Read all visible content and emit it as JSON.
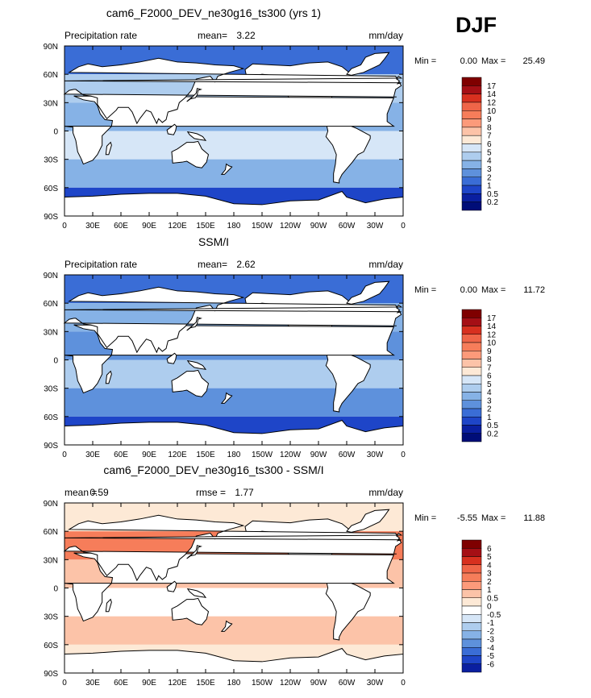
{
  "figure": {
    "season": "DJF"
  },
  "chart_data": [
    {
      "type": "heatmap",
      "title": "cam6_F2000_DEV_ne30g16_ts300 (yrs 1)",
      "left_label": "Precipitation rate",
      "stat1_label": "mean=",
      "stat1_value": "3.22",
      "stat2_label": "",
      "stat2_value": "",
      "units": "mm/day",
      "min_label": "Min =",
      "min_value": "0.00",
      "max_label": "Max =",
      "max_value": "25.49",
      "xlim": [
        0,
        360
      ],
      "ylim": [
        -90,
        90
      ],
      "x_ticks": [
        "0",
        "30E",
        "60E",
        "90E",
        "120E",
        "150E",
        "180",
        "150W",
        "120W",
        "90W",
        "60W",
        "30W",
        "0"
      ],
      "y_ticks": [
        "90S",
        "60S",
        "30S",
        "0",
        "30N",
        "60N",
        "90N"
      ],
      "colorbar_levels": [
        "17",
        "14",
        "12",
        "10",
        "9",
        "8",
        "7",
        "6",
        "5",
        "4",
        "3",
        "2",
        "1",
        "0.5",
        "0.2"
      ],
      "colorbar_colors": [
        "#7f0000",
        "#a50f15",
        "#d7301f",
        "#ef6548",
        "#f67d5a",
        "#fc9a7a",
        "#fcc3a8",
        "#fde9d6",
        "#d6e6f7",
        "#aecdee",
        "#86b2e6",
        "#5e91dc",
        "#3a6dd6",
        "#1e45c8",
        "#0a1fa0",
        "#000d78"
      ],
      "field_bins": [
        {
          "lat_range": [
            60,
            90
          ],
          "value": 1.0
        },
        {
          "lat_range": [
            30,
            60
          ],
          "value": 4.0
        },
        {
          "lat_range": [
            0,
            30
          ],
          "value": 3.0
        },
        {
          "lat_range": [
            -30,
            0
          ],
          "value": 5.0
        },
        {
          "lat_range": [
            -60,
            -30
          ],
          "value": 3.0
        },
        {
          "lat_range": [
            -90,
            -60
          ],
          "value": 0.5
        }
      ]
    },
    {
      "type": "heatmap",
      "title": "SSM/I",
      "left_label": "Precipitation rate",
      "stat1_label": "mean=",
      "stat1_value": "2.62",
      "stat2_label": "",
      "stat2_value": "",
      "units": "mm/day",
      "min_label": "Min =",
      "min_value": "0.00",
      "max_label": "Max =",
      "max_value": "11.72",
      "xlim": [
        0,
        360
      ],
      "ylim": [
        -90,
        90
      ],
      "x_ticks": [
        "0",
        "30E",
        "60E",
        "90E",
        "120E",
        "150E",
        "180",
        "150W",
        "120W",
        "90W",
        "60W",
        "30W",
        "0"
      ],
      "y_ticks": [
        "90S",
        "60S",
        "30S",
        "0",
        "30N",
        "60N",
        "90N"
      ],
      "colorbar_levels": [
        "17",
        "14",
        "12",
        "10",
        "9",
        "8",
        "7",
        "6",
        "5",
        "4",
        "3",
        "2",
        "1",
        "0.5",
        "0.2"
      ],
      "colorbar_colors": [
        "#7f0000",
        "#a50f15",
        "#d7301f",
        "#ef6548",
        "#f67d5a",
        "#fc9a7a",
        "#fcc3a8",
        "#fde9d6",
        "#d6e6f7",
        "#aecdee",
        "#86b2e6",
        "#5e91dc",
        "#3a6dd6",
        "#1e45c8",
        "#0a1fa0",
        "#000d78"
      ],
      "field_bins": [
        {
          "lat_range": [
            60,
            90
          ],
          "value": 1.0
        },
        {
          "lat_range": [
            30,
            60
          ],
          "value": 3.0
        },
        {
          "lat_range": [
            0,
            30
          ],
          "value": 2.0
        },
        {
          "lat_range": [
            -30,
            0
          ],
          "value": 4.0
        },
        {
          "lat_range": [
            -60,
            -30
          ],
          "value": 2.0
        },
        {
          "lat_range": [
            -90,
            -60
          ],
          "value": 0.5
        }
      ]
    },
    {
      "type": "heatmap",
      "title": "cam6_F2000_DEV_ne30g16_ts300 - SSM/I",
      "left_label": "",
      "stat1_label": "mean =",
      "stat1_value": "0.59",
      "stat2_label": "rmse =",
      "stat2_value": "1.77",
      "units": "mm/day",
      "min_label": "Min =",
      "min_value": "-5.55",
      "max_label": "Max =",
      "max_value": "11.88",
      "xlim": [
        0,
        360
      ],
      "ylim": [
        -90,
        90
      ],
      "x_ticks": [
        "0",
        "30E",
        "60E",
        "90E",
        "120E",
        "150E",
        "180",
        "150W",
        "120W",
        "90W",
        "60W",
        "30W",
        "0"
      ],
      "y_ticks": [
        "90S",
        "60S",
        "30S",
        "0",
        "30N",
        "60N",
        "90N"
      ],
      "colorbar_levels": [
        "6",
        "5",
        "4",
        "3",
        "2",
        "1",
        "0.5",
        "0",
        "-0.5",
        "-1",
        "-2",
        "-3",
        "-4",
        "-5",
        "-6"
      ],
      "colorbar_colors": [
        "#7f0000",
        "#a50f15",
        "#d7301f",
        "#ef6548",
        "#f67d5a",
        "#fc9a7a",
        "#fcc3a8",
        "#fde9d6",
        "#ffffff",
        "#d6e6f7",
        "#aecdee",
        "#86b2e6",
        "#5e91dc",
        "#3a6dd6",
        "#1e45c8",
        "#0a1fa0"
      ],
      "field_bins": [
        {
          "lat_range": [
            60,
            90
          ],
          "value": 0.0
        },
        {
          "lat_range": [
            30,
            60
          ],
          "value": 2.0
        },
        {
          "lat_range": [
            0,
            30
          ],
          "value": 0.5
        },
        {
          "lat_range": [
            -30,
            0
          ],
          "value": -0.5
        },
        {
          "lat_range": [
            -60,
            -30
          ],
          "value": 0.5
        },
        {
          "lat_range": [
            -90,
            -60
          ],
          "value": 0.0
        }
      ]
    }
  ]
}
